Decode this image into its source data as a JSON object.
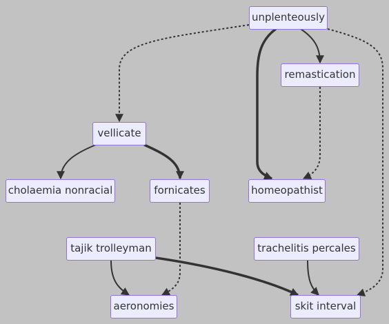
{
  "nodes": {
    "unplenteously": "unplenteously",
    "remastication": "remastication",
    "vellicate": "vellicate",
    "cholaemia_nonracial": "cholaemia nonracial",
    "fornicates": "fornicates",
    "homeopathist": "homeopathist",
    "tajik_trolleyman": "tajik trolleyman",
    "trachelitis_percales": "trachelitis percales",
    "aeronomies": "aeronomies",
    "skit_interval": "skit interval"
  },
  "edges": [
    {
      "from": "unplenteously",
      "to": "vellicate",
      "style": "dotted"
    },
    {
      "from": "unplenteously",
      "to": "homeopathist",
      "style": "thick"
    },
    {
      "from": "unplenteously",
      "to": "remastication",
      "style": "solid"
    },
    {
      "from": "unplenteously",
      "to": "skit_interval",
      "style": "dotted"
    },
    {
      "from": "remastication",
      "to": "homeopathist",
      "style": "dotted"
    },
    {
      "from": "vellicate",
      "to": "cholaemia_nonracial",
      "style": "solid"
    },
    {
      "from": "vellicate",
      "to": "fornicates",
      "style": "thick"
    },
    {
      "from": "fornicates",
      "to": "aeronomies",
      "style": "dotted"
    },
    {
      "from": "tajik_trolleyman",
      "to": "aeronomies",
      "style": "solid"
    },
    {
      "from": "tajik_trolleyman",
      "to": "skit_interval",
      "style": "thick"
    },
    {
      "from": "trachelitis_percales",
      "to": "skit_interval",
      "style": "solid"
    }
  ],
  "colors": {
    "background": "#c2c2c2",
    "node_fill": "#ececff",
    "node_border": "#9370db",
    "edge": "#333333"
  }
}
